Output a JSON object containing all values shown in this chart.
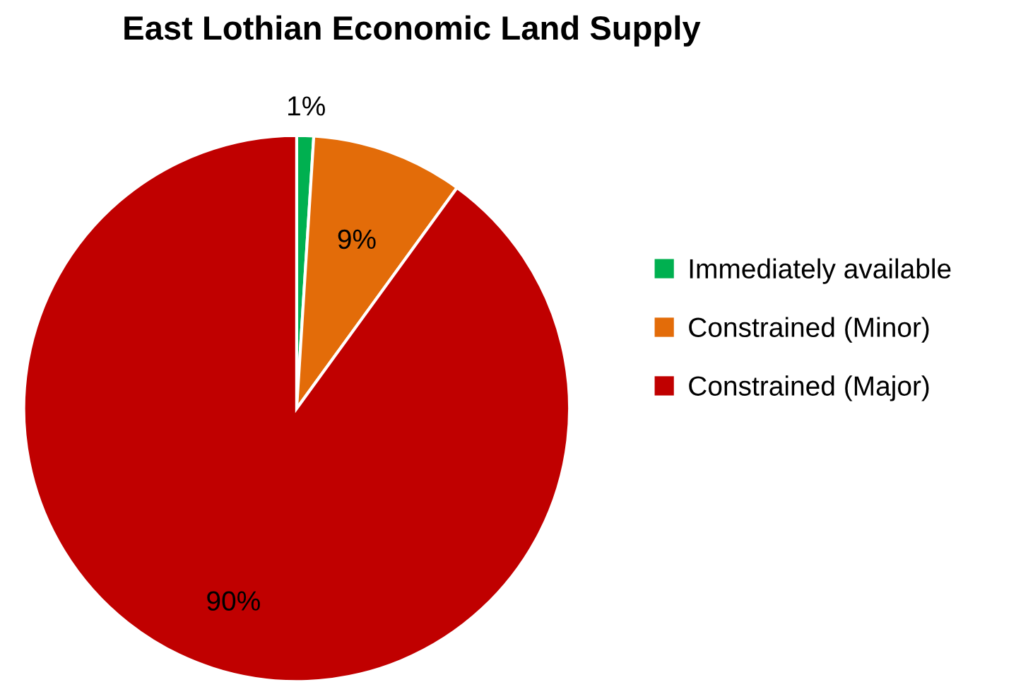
{
  "chart_data": {
    "type": "pie",
    "title": "East Lothian Economic Land Supply",
    "categories": [
      "Immediately available",
      "Constrained (Minor)",
      "Constrained (Major)"
    ],
    "values": [
      1,
      9,
      90
    ],
    "colors": [
      "#00b050",
      "#e36c09",
      "#c00000"
    ],
    "value_labels": [
      "1%",
      "9%",
      "90%"
    ],
    "legend": "right"
  }
}
